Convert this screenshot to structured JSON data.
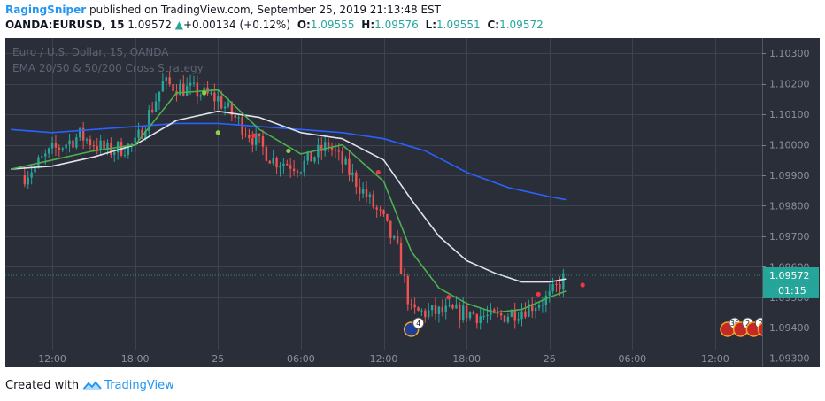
{
  "header": {
    "author": "RagingSniper",
    "published_text": "published on TradingView.com, September 25, 2019 21:13:48 EST"
  },
  "ohlc": {
    "symbol": "OANDA:EURUSD, 15",
    "last": "1.09572",
    "change_arrow": "▲",
    "change": "+0.00134 (+0.12%)",
    "o_label": "O:",
    "o": "1.09555",
    "h_label": "H:",
    "h": "1.09576",
    "l_label": "L:",
    "l": "1.09551",
    "c_label": "C:",
    "c": "1.09572"
  },
  "chart_overlay": {
    "symbol_desc": "Euro / U.S. Dollar, 15, OANDA",
    "strategy": "EMA 20/50 & 50/200 Cross Strategy"
  },
  "colors": {
    "background": "#2a2e39",
    "grid": "#3d4250",
    "up_candle": "#26a69a",
    "down_candle": "#ef5350",
    "ema_fast": "#4caf50",
    "ema_mid": "#e0e3eb",
    "ema_slow": "#2962ff",
    "price_badge": "#26a69a"
  },
  "footer": {
    "created_with": "Created with",
    "brand": "TradingView"
  },
  "events": [
    {
      "icon": "eu-flag-icon",
      "count": "4",
      "x": 26.0
    },
    {
      "icon": "us-flag-icon",
      "count": "36",
      "x": 48.9
    },
    {
      "icon": "us-flag-icon",
      "count": "2",
      "x": 49.2
    },
    {
      "icon": "us-flag-icon",
      "count": "2",
      "x": 49.5
    },
    {
      "icon": "us-flag-icon",
      "count": "2",
      "x": 49.7
    }
  ],
  "chart_data": {
    "type": "candlestick",
    "x_unit": "hours from Sep 24 12:00 EST",
    "xlim": [
      -3.4,
      51.4
    ],
    "ylim": [
      1.0927,
      1.1035
    ],
    "x_ticks": [
      {
        "x": 0,
        "label": "12:00"
      },
      {
        "x": 6,
        "label": "18:00"
      },
      {
        "x": 12,
        "label": "25"
      },
      {
        "x": 18,
        "label": "06:00"
      },
      {
        "x": 24,
        "label": "12:00"
      },
      {
        "x": 30,
        "label": "18:00"
      },
      {
        "x": 36,
        "label": "26"
      },
      {
        "x": 42,
        "label": "06:00"
      },
      {
        "x": 48,
        "label": "12:00"
      }
    ],
    "y_ticks": [
      {
        "y": 1.103,
        "label": "1.10300"
      },
      {
        "y": 1.102,
        "label": "1.10200"
      },
      {
        "y": 1.101,
        "label": "1.10100"
      },
      {
        "y": 1.1,
        "label": "1.10000"
      },
      {
        "y": 1.099,
        "label": "1.09900"
      },
      {
        "y": 1.098,
        "label": "1.09800"
      },
      {
        "y": 1.097,
        "label": "1.09700"
      },
      {
        "y": 1.096,
        "label": "1.09600"
      },
      {
        "y": 1.095,
        "label": "1.09500"
      },
      {
        "y": 1.094,
        "label": "1.09400"
      },
      {
        "y": 1.093,
        "label": "1.09300"
      }
    ],
    "price_series": {
      "x": [
        -2,
        0,
        2,
        4,
        6,
        8,
        10,
        12,
        14,
        16,
        18,
        20,
        22,
        24,
        25,
        26,
        28,
        30,
        32,
        34,
        36,
        37.2
      ],
      "y": [
        1.099,
        1.0998,
        1.1003,
        1.0998,
        1.1,
        1.102,
        1.1018,
        1.1015,
        1.1005,
        1.0995,
        1.0993,
        1.1,
        1.0988,
        1.0975,
        1.0965,
        1.0945,
        1.0945,
        1.0945,
        1.0943,
        1.0946,
        1.095,
        1.09572
      ]
    },
    "ema_fast": {
      "x": [
        -3,
        0,
        3,
        6,
        9,
        12,
        15,
        18,
        21,
        24,
        26,
        28,
        30,
        32,
        34,
        36,
        37.2
      ],
      "y": [
        1.0992,
        1.0995,
        1.0998,
        1.1,
        1.1017,
        1.1018,
        1.1005,
        1.0997,
        1.1,
        1.0988,
        1.0965,
        1.0953,
        1.0948,
        1.0945,
        1.0946,
        1.095,
        1.0952
      ]
    },
    "ema_mid": {
      "x": [
        -3,
        0,
        3,
        6,
        9,
        12,
        15,
        18,
        21,
        24,
        26,
        28,
        30,
        32,
        34,
        36,
        37.2
      ],
      "y": [
        1.0992,
        1.0993,
        1.0996,
        1.1,
        1.1008,
        1.1011,
        1.1009,
        1.1004,
        1.1002,
        1.0995,
        1.0982,
        1.097,
        1.0962,
        1.0958,
        1.0955,
        1.0955,
        1.0956
      ]
    },
    "ema_slow": {
      "x": [
        -3,
        0,
        3,
        6,
        9,
        12,
        15,
        18,
        21,
        24,
        27,
        30,
        33,
        36,
        37.2
      ],
      "y": [
        1.1005,
        1.1004,
        1.1005,
        1.1006,
        1.1007,
        1.1007,
        1.1006,
        1.1005,
        1.1004,
        1.1002,
        1.0998,
        1.0991,
        1.0986,
        1.0983,
        1.0982
      ]
    },
    "signals": [
      {
        "x": 11.0,
        "y": 1.1017,
        "kind": "green"
      },
      {
        "x": 12.0,
        "y": 1.1004,
        "kind": "green"
      },
      {
        "x": 17.1,
        "y": 1.0998,
        "kind": "green"
      },
      {
        "x": 14.6,
        "y": 1.1003,
        "kind": "red"
      },
      {
        "x": 23.6,
        "y": 1.0991,
        "kind": "red"
      },
      {
        "x": 28.7,
        "y": 1.095,
        "kind": "red"
      },
      {
        "x": 38.4,
        "y": 1.0954,
        "kind": "red"
      },
      {
        "x": 35.2,
        "y": 1.0951,
        "kind": "red"
      }
    ],
    "last_price": {
      "value": 1.09572,
      "label": "1.09572",
      "countdown": "01:15"
    }
  }
}
